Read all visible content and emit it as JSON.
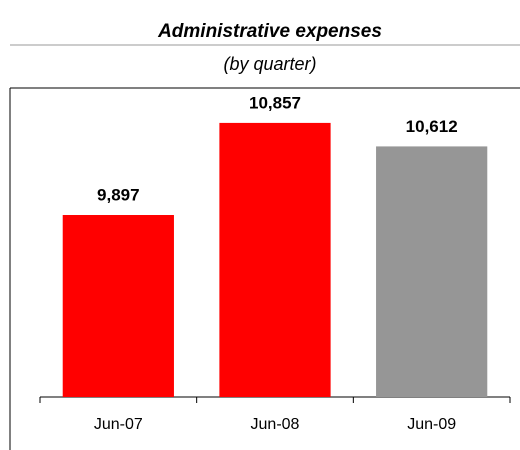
{
  "chart_data": {
    "type": "bar",
    "title": "Administrative expenses",
    "subtitle": "(by quarter)",
    "categories": [
      "Jun-07",
      "Jun-08",
      "Jun-09"
    ],
    "values": [
      9897,
      10857,
      10612
    ],
    "value_labels": [
      "9,897",
      "10,857",
      "10,612"
    ],
    "colors": [
      "#ff0000",
      "#ff0000",
      "#969696"
    ],
    "ylim": [
      8000,
      11200
    ]
  }
}
